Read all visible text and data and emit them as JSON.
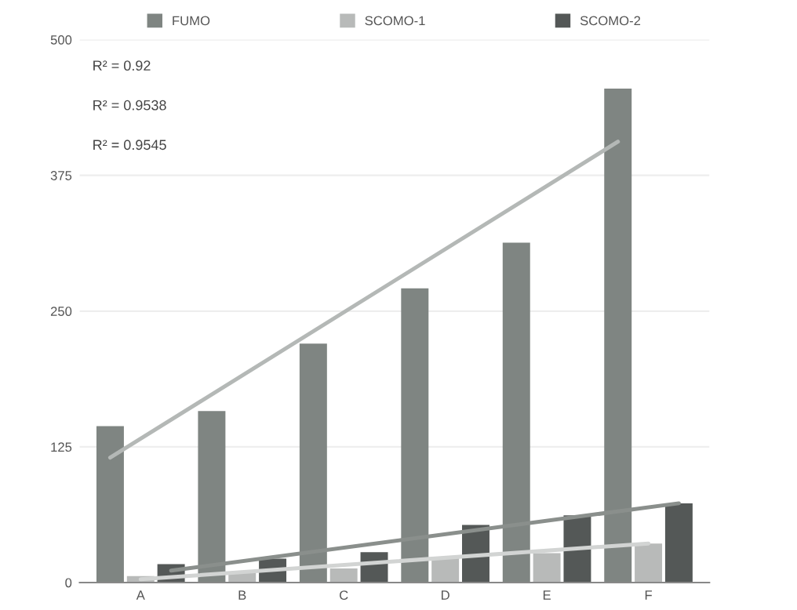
{
  "chart_data": {
    "type": "bar",
    "categories": [
      "A",
      "B",
      "C",
      "D",
      "E",
      "F"
    ],
    "series": [
      {
        "name": "FUMO",
        "color": "#7f8582",
        "values": [
          144,
          158,
          220,
          271,
          313,
          455
        ]
      },
      {
        "name": "SCOMO-1",
        "color": "#b8bab9",
        "values": [
          6,
          9,
          13,
          23,
          27,
          36
        ]
      },
      {
        "name": "SCOMO-2",
        "color": "#545857",
        "values": [
          17,
          22,
          28,
          53,
          62,
          73
        ]
      },
      {
        "type": "line",
        "color": "#b4b8b6",
        "x": [
          "A",
          "F"
        ],
        "values": [
          115,
          406
        ]
      },
      {
        "type": "line",
        "color": "#d2d4d3",
        "x": [
          "A",
          "F"
        ],
        "values": [
          3,
          36
        ]
      },
      {
        "type": "line",
        "color": "#8a8f8c",
        "x": [
          "A",
          "F"
        ],
        "values": [
          11,
          73
        ]
      }
    ],
    "ylim": [
      0,
      500
    ],
    "yticks": [
      0,
      125,
      250,
      375,
      500
    ],
    "grid": "y",
    "legend": "top",
    "annotations": [
      "R² = 0.92",
      "R² = 0.9538",
      "R² = 0.9545"
    ]
  }
}
